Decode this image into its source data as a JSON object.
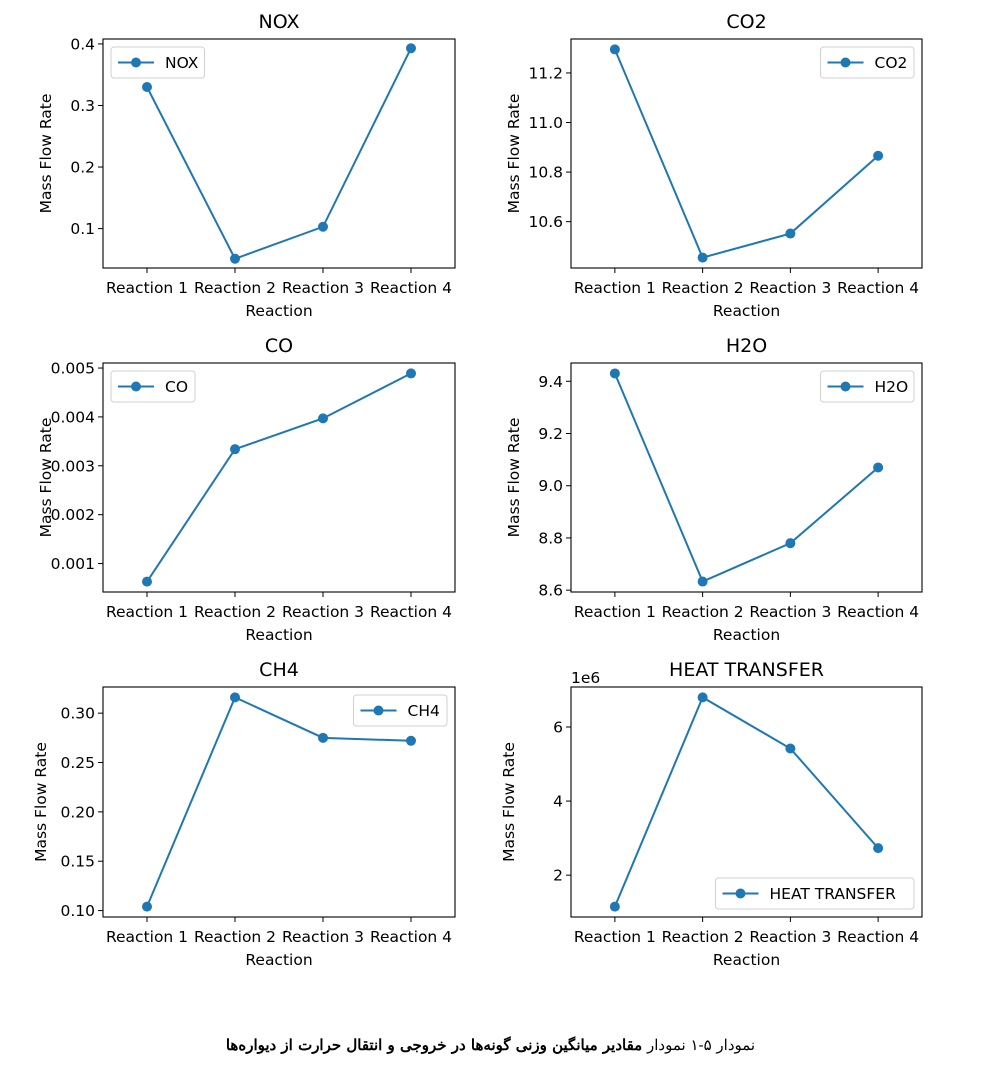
{
  "figure_caption": {
    "lead": "نمودار ۵-۱ نمودار",
    "text": "مقادیر میانگین وزنی گونه‌ها در خروجی و انتقال حرارت از دیواره‌ها"
  },
  "line_color": "#1f77b4",
  "chart_data": [
    {
      "type": "line",
      "title": "NOX",
      "xlabel": "Reaction",
      "ylabel": "Mass Flow Rate",
      "categories": [
        "Reaction 1",
        "Reaction 2",
        "Reaction 3",
        "Reaction 4"
      ],
      "series": [
        {
          "name": "NOX",
          "values": [
            0.33,
            0.051,
            0.103,
            0.393
          ]
        }
      ],
      "ylim": [
        0.036,
        0.408
      ],
      "yticks": [
        0.1,
        0.2,
        0.3,
        0.4
      ],
      "yticklabels": [
        "0.1",
        "0.2",
        "0.3",
        "0.4"
      ],
      "legend": "upper-left",
      "grid": false
    },
    {
      "type": "line",
      "title": "CO2",
      "xlabel": "Reaction",
      "ylabel": "Mass Flow Rate",
      "categories": [
        "Reaction 1",
        "Reaction 2",
        "Reaction 3",
        "Reaction 4"
      ],
      "series": [
        {
          "name": "CO2",
          "values": [
            11.295,
            10.455,
            10.552,
            10.866
          ]
        }
      ],
      "ylim": [
        10.413,
        11.337
      ],
      "yticks": [
        10.6,
        10.8,
        11.0,
        11.2
      ],
      "yticklabels": [
        "10.6",
        "10.8",
        "11.0",
        "11.2"
      ],
      "legend": "upper-right",
      "grid": false
    },
    {
      "type": "line",
      "title": "CO",
      "xlabel": "Reaction",
      "ylabel": "Mass Flow Rate",
      "categories": [
        "Reaction 1",
        "Reaction 2",
        "Reaction 3",
        "Reaction 4"
      ],
      "series": [
        {
          "name": "CO",
          "values": [
            0.00063,
            0.00334,
            0.00397,
            0.00489
          ]
        }
      ],
      "ylim": [
        0.000418,
        0.005103
      ],
      "yticks": [
        0.001,
        0.002,
        0.003,
        0.004,
        0.005
      ],
      "yticklabels": [
        "0.001",
        "0.002",
        "0.003",
        "0.004",
        "0.005"
      ],
      "legend": "upper-left",
      "grid": false
    },
    {
      "type": "line",
      "title": "H2O",
      "xlabel": "Reaction",
      "ylabel": "Mass Flow Rate",
      "categories": [
        "Reaction 1",
        "Reaction 2",
        "Reaction 3",
        "Reaction 4"
      ],
      "series": [
        {
          "name": "H2O",
          "values": [
            9.43,
            8.633,
            8.78,
            9.07
          ]
        }
      ],
      "ylim": [
        8.593,
        9.47
      ],
      "yticks": [
        8.6,
        8.8,
        9.0,
        9.2,
        9.4
      ],
      "yticklabels": [
        "8.6",
        "8.8",
        "9.0",
        "9.2",
        "9.4"
      ],
      "legend": "upper-right",
      "grid": false
    },
    {
      "type": "line",
      "title": "CH4",
      "xlabel": "Reaction",
      "ylabel": "Mass Flow Rate",
      "categories": [
        "Reaction 1",
        "Reaction 2",
        "Reaction 3",
        "Reaction 4"
      ],
      "series": [
        {
          "name": "CH4",
          "values": [
            0.104,
            0.316,
            0.275,
            0.272
          ]
        }
      ],
      "ylim": [
        0.0935,
        0.3265
      ],
      "yticks": [
        0.1,
        0.15,
        0.2,
        0.25,
        0.3
      ],
      "yticklabels": [
        "0.10",
        "0.15",
        "0.20",
        "0.25",
        "0.30"
      ],
      "legend": "upper-right",
      "grid": false
    },
    {
      "type": "line",
      "title": "HEAT TRANSFER",
      "xlabel": "Reaction",
      "ylabel": "Mass Flow Rate",
      "y_offset_label": "1e6",
      "categories": [
        "Reaction 1",
        "Reaction 2",
        "Reaction 3",
        "Reaction 4"
      ],
      "series": [
        {
          "name": "HEAT TRANSFER",
          "values": [
            1.15,
            6.8,
            5.42,
            2.73
          ]
        }
      ],
      "ylim": [
        0.87,
        7.08
      ],
      "yticks": [
        2,
        4,
        6
      ],
      "yticklabels": [
        "2",
        "4",
        "6"
      ],
      "legend": "lower-right",
      "grid": false
    }
  ]
}
